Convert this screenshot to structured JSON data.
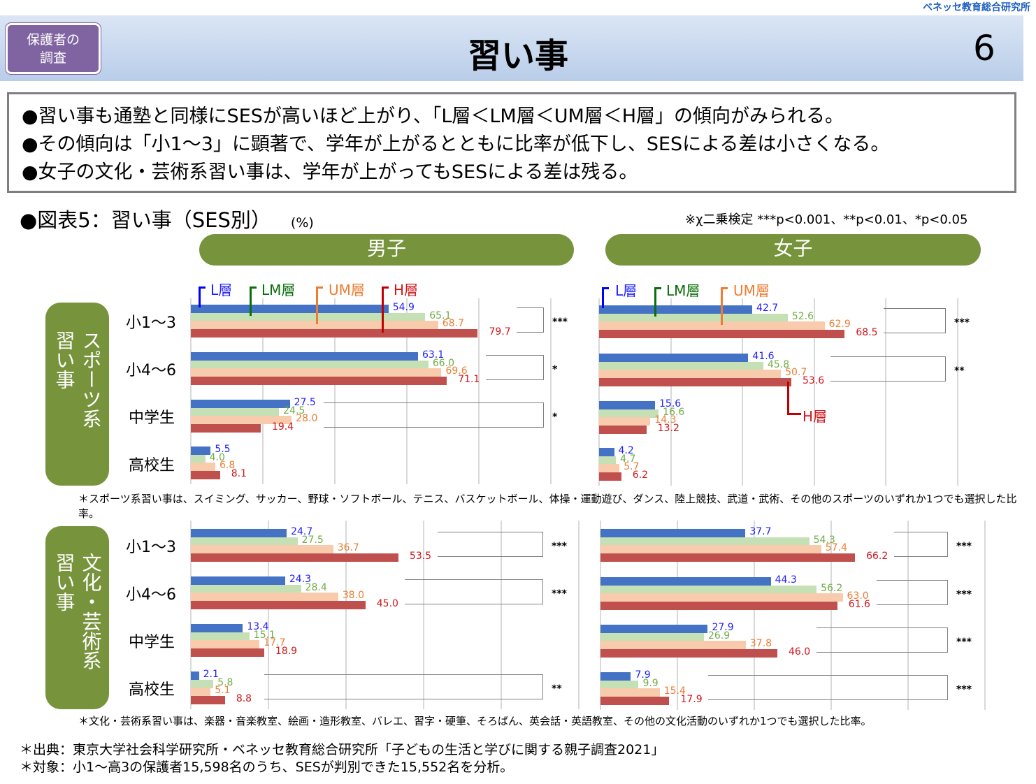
{
  "header": {
    "org": "ベネッセ教育総合研究所",
    "badge": "保護者の\n調査",
    "title": "習い事",
    "page_number": "6"
  },
  "summary": [
    "●習い事も通塾と同様にSESが高いほど上がり、「L層＜LM層＜UM層＜H層」の傾向がみられる。",
    "●その傾向は「小1～3」に顕著で、学年が上がるとともに比率が低下し、SESによる差は小さくなる。",
    "●女子の文化・芸術系習い事は、学年が上がってもSESによる差は残る。"
  ],
  "section": {
    "title": "●図表5：習い事（SES別）",
    "unit": "(%)",
    "test_note": "※χ二乗検定 ***p<0.001、**p<0.01、*p<0.05"
  },
  "groups": {
    "boys": "男子",
    "girls": "女子"
  },
  "side_labels": {
    "sports": [
      "スポーツ系",
      "習い事"
    ],
    "culture": [
      "文化・芸術系",
      "習い事"
    ]
  },
  "grades": [
    "小1～3",
    "小4～6",
    "中学生",
    "高校生"
  ],
  "legend": [
    "L層",
    "LM層",
    "UM層",
    "H層"
  ],
  "colors": {
    "L": "#4472c4",
    "LM": "#c5e0b4",
    "UM": "#f8cbad",
    "H": "#c0504d",
    "L_text": "#1f1fff",
    "LM_text": "#70ad47",
    "UM_text": "#ed7d31",
    "H_text": "#d0161b",
    "accent": "#77933c"
  },
  "notes": {
    "sports": "＊スポーツ系習い事は、スイミング、サッカー、野球・ソフトボール、テニス、バスケットボール、体操・運動遊び、ダンス、陸上競技、武道・武術、その他のスポーツのいずれか1つでも選択した比率。",
    "culture": "＊文化・芸術系習い事は、楽器・音楽教室、絵画・造形教室、バレエ、習字・硬筆、そろばん、英会話・英語教室、その他の文化活動のいずれか1つでも選択した比率。"
  },
  "sources": [
    "＊出典：東京大学社会科学研究所・ベネッセ教育総合研究所「子どもの生活と学びに関する親子調査2021」",
    "＊対象：小1～高3の保護者15,598名のうち、SESが判別できた15,552名を分析。"
  ],
  "chart_data": [
    {
      "type": "bar",
      "orientation": "horizontal",
      "categories": [
        "小1～3",
        "小4～6",
        "中学生",
        "高校生"
      ],
      "xlim": [
        0,
        100
      ],
      "grid": true,
      "series": [
        {
          "name": "L層",
          "values": [
            54.9,
            63.1,
            27.5,
            5.5
          ]
        },
        {
          "name": "LM層",
          "values": [
            65.1,
            66.0,
            24.5,
            4.0
          ]
        },
        {
          "name": "UM層",
          "values": [
            68.7,
            69.6,
            28.0,
            6.8
          ]
        },
        {
          "name": "H層",
          "values": [
            79.7,
            71.1,
            19.4,
            8.1
          ]
        }
      ],
      "significance": [
        "***",
        "*",
        "*",
        ""
      ]
    },
    {
      "type": "bar",
      "orientation": "horizontal",
      "categories": [
        "小1～3",
        "小4～6",
        "中学生",
        "高校生"
      ],
      "xlim": [
        0,
        100
      ],
      "grid": true,
      "series": [
        {
          "name": "L層",
          "values": [
            42.7,
            41.6,
            15.6,
            4.2
          ]
        },
        {
          "name": "LM層",
          "values": [
            52.6,
            45.8,
            16.6,
            4.7
          ]
        },
        {
          "name": "UM層",
          "values": [
            62.9,
            50.7,
            14.3,
            5.7
          ]
        },
        {
          "name": "H層",
          "values": [
            68.5,
            53.6,
            13.2,
            6.2
          ]
        }
      ],
      "significance": [
        "***",
        "**",
        "",
        ""
      ]
    },
    {
      "type": "bar",
      "orientation": "horizontal",
      "categories": [
        "小1～3",
        "小4～6",
        "中学生",
        "高校生"
      ],
      "xlim": [
        0,
        100
      ],
      "grid": true,
      "series": [
        {
          "name": "L層",
          "values": [
            24.7,
            24.3,
            13.4,
            2.1
          ]
        },
        {
          "name": "LM層",
          "values": [
            27.5,
            28.4,
            15.1,
            5.8
          ]
        },
        {
          "name": "UM層",
          "values": [
            36.7,
            38.0,
            17.7,
            5.1
          ]
        },
        {
          "name": "H層",
          "values": [
            53.5,
            45.0,
            18.9,
            8.8
          ]
        }
      ],
      "significance": [
        "***",
        "***",
        "",
        "**"
      ]
    },
    {
      "type": "bar",
      "orientation": "horizontal",
      "categories": [
        "小1～3",
        "小4～6",
        "中学生",
        "高校生"
      ],
      "xlim": [
        0,
        100
      ],
      "grid": true,
      "series": [
        {
          "name": "L層",
          "values": [
            37.7,
            44.3,
            27.9,
            7.9
          ]
        },
        {
          "name": "LM層",
          "values": [
            54.3,
            56.2,
            26.9,
            9.9
          ]
        },
        {
          "name": "UM層",
          "values": [
            57.4,
            63.0,
            37.8,
            15.4
          ]
        },
        {
          "name": "H層",
          "values": [
            66.2,
            61.6,
            46.0,
            17.9
          ]
        }
      ],
      "significance": [
        "***",
        "***",
        "***",
        "***"
      ]
    }
  ]
}
